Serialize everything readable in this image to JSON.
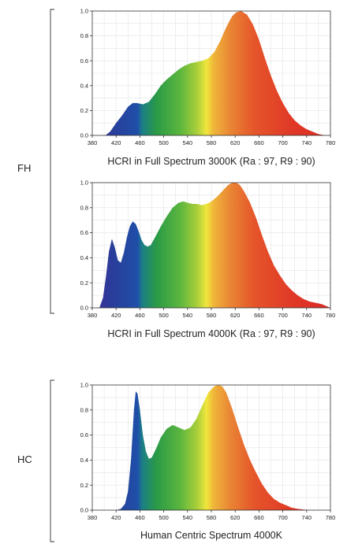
{
  "groups": [
    {
      "label": "FH"
    },
    {
      "label": "HC"
    }
  ],
  "chart_data": [
    {
      "type": "area",
      "title": "HCRI in Full Spectrum 3000K (Ra : 97, R9 : 90)",
      "xlabel": "",
      "ylabel": "",
      "xlim": [
        380,
        780
      ],
      "ylim": [
        0,
        1.0
      ],
      "x_ticks": [
        "380",
        "420",
        "460",
        "500",
        "540",
        "580",
        "620",
        "660",
        "700",
        "740",
        "780"
      ],
      "y_ticks": [
        "0.0",
        "0.2",
        "0.4",
        "0.6",
        "0.8",
        "1.0"
      ],
      "grid": true,
      "fill": "visible-spectrum gradient",
      "x": [
        402,
        410,
        420,
        430,
        440,
        448,
        455,
        465,
        475,
        485,
        495,
        505,
        515,
        525,
        535,
        545,
        555,
        565,
        575,
        585,
        595,
        605,
        615,
        622,
        630,
        640,
        650,
        660,
        670,
        680,
        690,
        700,
        710,
        720,
        730,
        740,
        750,
        760,
        772
      ],
      "y": [
        0.0,
        0.03,
        0.1,
        0.16,
        0.23,
        0.26,
        0.26,
        0.25,
        0.27,
        0.33,
        0.4,
        0.45,
        0.49,
        0.53,
        0.56,
        0.58,
        0.59,
        0.6,
        0.62,
        0.67,
        0.76,
        0.87,
        0.96,
        0.99,
        1.0,
        0.97,
        0.89,
        0.77,
        0.62,
        0.48,
        0.36,
        0.26,
        0.18,
        0.12,
        0.08,
        0.05,
        0.03,
        0.01,
        0.0
      ]
    },
    {
      "type": "area",
      "title": "HCRI in Full Spectrum 4000K (Ra : 97, R9 : 90)",
      "xlabel": "",
      "ylabel": "",
      "xlim": [
        380,
        780
      ],
      "ylim": [
        0,
        1.0
      ],
      "x_ticks": [
        "380",
        "420",
        "460",
        "500",
        "540",
        "580",
        "620",
        "660",
        "700",
        "740",
        "780"
      ],
      "y_ticks": [
        "0.0",
        "0.2",
        "0.4",
        "0.6",
        "0.8",
        "1.0"
      ],
      "grid": true,
      "fill": "visible-spectrum gradient",
      "x": [
        392,
        398,
        403,
        408,
        413,
        418,
        423,
        428,
        433,
        438,
        443,
        448,
        453,
        458,
        463,
        468,
        473,
        478,
        485,
        495,
        505,
        515,
        525,
        533,
        540,
        548,
        556,
        564,
        572,
        580,
        590,
        600,
        608,
        615,
        622,
        628,
        635,
        645,
        655,
        665,
        675,
        685,
        695,
        705,
        715,
        725,
        735,
        745,
        755,
        765,
        775,
        780
      ],
      "y": [
        0.0,
        0.08,
        0.25,
        0.45,
        0.55,
        0.48,
        0.38,
        0.36,
        0.44,
        0.56,
        0.65,
        0.69,
        0.67,
        0.61,
        0.54,
        0.5,
        0.49,
        0.5,
        0.56,
        0.65,
        0.73,
        0.8,
        0.84,
        0.85,
        0.84,
        0.83,
        0.83,
        0.82,
        0.83,
        0.85,
        0.89,
        0.94,
        0.98,
        1.0,
        1.0,
        0.98,
        0.93,
        0.84,
        0.72,
        0.58,
        0.45,
        0.34,
        0.26,
        0.19,
        0.14,
        0.1,
        0.07,
        0.05,
        0.04,
        0.03,
        0.01,
        0.0
      ]
    },
    {
      "type": "area",
      "title": "Human Centric Spectrum 4000K",
      "xlabel": "",
      "ylabel": "",
      "xlim": [
        380,
        780
      ],
      "ylim": [
        0,
        1.0
      ],
      "x_ticks": [
        "380",
        "420",
        "460",
        "500",
        "540",
        "580",
        "620",
        "660",
        "700",
        "740",
        "780"
      ],
      "y_ticks": [
        "0.0",
        "0.2",
        "0.4",
        "0.6",
        "0.8",
        "1.0"
      ],
      "grid": true,
      "fill": "visible-spectrum gradient",
      "x": [
        420,
        428,
        435,
        440,
        445,
        450,
        453,
        456,
        460,
        465,
        470,
        475,
        480,
        488,
        495,
        505,
        515,
        525,
        535,
        545,
        555,
        565,
        575,
        585,
        592,
        598,
        605,
        615,
        625,
        635,
        645,
        655,
        665,
        675,
        685,
        695,
        705,
        715,
        725,
        735,
        745,
        755
      ],
      "y": [
        0.0,
        0.01,
        0.05,
        0.15,
        0.4,
        0.8,
        0.95,
        0.93,
        0.8,
        0.6,
        0.47,
        0.41,
        0.42,
        0.5,
        0.58,
        0.65,
        0.68,
        0.66,
        0.64,
        0.66,
        0.73,
        0.84,
        0.94,
        0.99,
        1.0,
        0.99,
        0.94,
        0.81,
        0.66,
        0.52,
        0.4,
        0.3,
        0.21,
        0.14,
        0.09,
        0.06,
        0.04,
        0.02,
        0.01,
        0.005,
        0.0,
        0.0
      ]
    }
  ]
}
